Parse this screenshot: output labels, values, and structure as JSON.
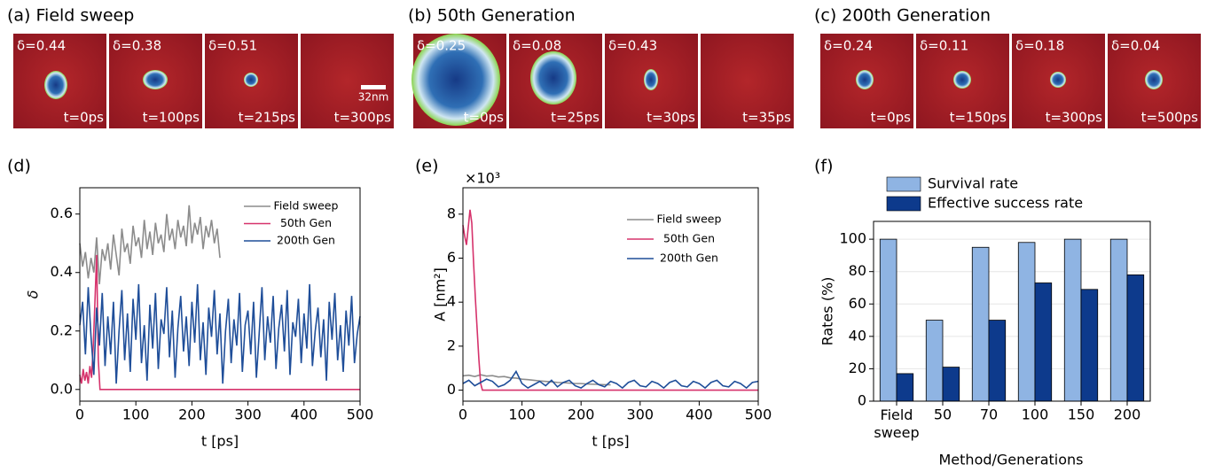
{
  "image_panels": [
    {
      "title": "(a) Field sweep",
      "tiles": [
        {
          "delta": "δ=0.44",
          "time": "t=0ps"
        },
        {
          "delta": "δ=0.38",
          "time": "t=100ps"
        },
        {
          "delta": "δ=0.51",
          "time": "t=215ps"
        },
        {
          "time": "t=300ps",
          "scale_bar": "32nm"
        }
      ]
    },
    {
      "title": "(b) 50th Generation",
      "tiles": [
        {
          "delta": "δ=0.25",
          "time": "t=0ps"
        },
        {
          "delta": "δ=0.08",
          "time": "t=25ps"
        },
        {
          "delta": "δ=0.43",
          "time": "t=30ps"
        },
        {
          "time": "t=35ps"
        }
      ]
    },
    {
      "title": "(c) 200th Generation",
      "tiles": [
        {
          "delta": "δ=0.24",
          "time": "t=0ps"
        },
        {
          "delta": "δ=0.11",
          "time": "t=150ps"
        },
        {
          "delta": "δ=0.18",
          "time": "t=300ps"
        },
        {
          "delta": "δ=0.04",
          "time": "t=500ps"
        }
      ]
    }
  ],
  "chart_data": [
    {
      "type": "line",
      "panel_label": "(d)",
      "xlabel": "t [ps]",
      "ylabel": "δ",
      "xlim": [
        0,
        500
      ],
      "xticks": [
        0,
        100,
        200,
        300,
        400,
        500
      ],
      "ylim": [
        -0.04,
        0.69
      ],
      "yticks": [
        {
          "value": 0,
          "label": "0.0"
        },
        0.2,
        0.4,
        0.6
      ],
      "legend": "upper right",
      "grid": false,
      "series": [
        {
          "name": "Field sweep",
          "color": "#8c8c8c",
          "x": [
            0,
            5,
            10,
            15,
            20,
            25,
            30,
            35,
            40,
            45,
            50,
            55,
            60,
            65,
            70,
            75,
            80,
            85,
            90,
            95,
            100,
            105,
            110,
            115,
            120,
            125,
            130,
            135,
            140,
            145,
            150,
            155,
            160,
            165,
            170,
            175,
            180,
            185,
            190,
            195,
            200,
            205,
            210,
            215,
            220,
            225,
            230,
            235,
            240,
            245,
            250
          ],
          "values": [
            0.5,
            0.42,
            0.47,
            0.38,
            0.45,
            0.4,
            0.52,
            0.36,
            0.48,
            0.44,
            0.5,
            0.41,
            0.53,
            0.46,
            0.39,
            0.55,
            0.47,
            0.5,
            0.43,
            0.56,
            0.49,
            0.52,
            0.45,
            0.58,
            0.48,
            0.54,
            0.46,
            0.57,
            0.5,
            0.53,
            0.47,
            0.6,
            0.51,
            0.55,
            0.48,
            0.58,
            0.52,
            0.56,
            0.49,
            0.63,
            0.5,
            0.57,
            0.53,
            0.59,
            0.48,
            0.56,
            0.52,
            0.58,
            0.5,
            0.55,
            0.45
          ]
        },
        {
          "name": "50th Gen",
          "color": "#d6336c",
          "x": [
            0,
            3,
            6,
            9,
            12,
            15,
            18,
            21,
            24,
            27,
            30,
            33,
            36,
            500
          ],
          "values": [
            0.05,
            0.02,
            0.07,
            0.03,
            0.06,
            0.02,
            0.08,
            0.04,
            0.15,
            0.3,
            0.46,
            0.1,
            0,
            0
          ]
        },
        {
          "name": "200th Gen",
          "color": "#1f4e99",
          "x": [
            0,
            5,
            10,
            15,
            20,
            25,
            30,
            35,
            40,
            45,
            50,
            55,
            60,
            65,
            70,
            75,
            80,
            85,
            90,
            95,
            100,
            105,
            110,
            115,
            120,
            125,
            130,
            135,
            140,
            145,
            150,
            155,
            160,
            165,
            170,
            175,
            180,
            185,
            190,
            195,
            200,
            205,
            210,
            215,
            220,
            225,
            230,
            235,
            240,
            245,
            250,
            255,
            260,
            265,
            270,
            275,
            280,
            285,
            290,
            295,
            300,
            305,
            310,
            315,
            320,
            325,
            330,
            335,
            340,
            345,
            350,
            355,
            360,
            365,
            370,
            375,
            380,
            385,
            390,
            395,
            400,
            405,
            410,
            415,
            420,
            425,
            430,
            435,
            440,
            445,
            450,
            455,
            460,
            465,
            470,
            475,
            480,
            485,
            490,
            495,
            500
          ],
          "values": [
            0.22,
            0.3,
            0.12,
            0.35,
            0.18,
            0.05,
            0.28,
            0.15,
            0.33,
            0.08,
            0.25,
            0.12,
            0.3,
            0.02,
            0.2,
            0.34,
            0.1,
            0.26,
            0.06,
            0.31,
            0.17,
            0.36,
            0.09,
            0.22,
            0.03,
            0.29,
            0.14,
            0.33,
            0.07,
            0.24,
            0.19,
            0.35,
            0.11,
            0.27,
            0.04,
            0.21,
            0.32,
            0.13,
            0.25,
            0.08,
            0.3,
            0.16,
            0.36,
            0.1,
            0.23,
            0.05,
            0.28,
            0.18,
            0.34,
            0.12,
            0.26,
            0.02,
            0.2,
            0.31,
            0.09,
            0.24,
            0.15,
            0.33,
            0.06,
            0.22,
            0.27,
            0.12,
            0.3,
            0.04,
            0.19,
            0.35,
            0.1,
            0.25,
            0.16,
            0.32,
            0.07,
            0.21,
            0.29,
            0.13,
            0.34,
            0.05,
            0.23,
            0.18,
            0.31,
            0.09,
            0.26,
            0.14,
            0.36,
            0.08,
            0.2,
            0.28,
            0.11,
            0.24,
            0.03,
            0.3,
            0.17,
            0.33,
            0.1,
            0.22,
            0.06,
            0.27,
            0.15,
            0.32,
            0.09,
            0.19,
            0.25
          ]
        }
      ]
    },
    {
      "type": "line",
      "panel_label": "(e)",
      "xlabel": "t [ps]",
      "ylabel": "A [nm²]",
      "y_offset_text": "×10³",
      "xlim": [
        0,
        500
      ],
      "xticks": [
        0,
        100,
        200,
        300,
        400,
        500
      ],
      "ylim": [
        -0.5,
        9.2
      ],
      "yticks": [
        0,
        2,
        4,
        6,
        8
      ],
      "legend": "upper right",
      "grid": false,
      "series": [
        {
          "name": "Field sweep",
          "color": "#8c8c8c",
          "x": [
            0,
            10,
            20,
            30,
            40,
            50,
            60,
            70,
            80,
            90,
            100,
            110,
            120,
            130,
            140,
            150,
            160,
            170,
            180,
            190,
            200,
            210,
            220,
            230,
            240,
            250
          ],
          "values": [
            0.65,
            0.68,
            0.62,
            0.7,
            0.64,
            0.66,
            0.6,
            0.62,
            0.56,
            0.55,
            0.5,
            0.48,
            0.45,
            0.42,
            0.4,
            0.38,
            0.35,
            0.34,
            0.32,
            0.3,
            0.3,
            0.28,
            0.27,
            0.26,
            0.25,
            0.24
          ]
        },
        {
          "name": "50th Gen",
          "color": "#d6336c",
          "x": [
            0,
            3,
            6,
            9,
            12,
            15,
            18,
            21,
            24,
            27,
            30,
            33,
            36,
            500
          ],
          "values": [
            7.5,
            7.0,
            6.6,
            7.4,
            8.2,
            7.6,
            5.8,
            4.2,
            2.8,
            1.4,
            0.3,
            0,
            0,
            0
          ]
        },
        {
          "name": "200th Gen",
          "color": "#1f4e99",
          "x": [
            0,
            10,
            20,
            30,
            40,
            50,
            60,
            70,
            80,
            90,
            100,
            110,
            120,
            130,
            140,
            150,
            160,
            170,
            180,
            190,
            200,
            210,
            220,
            230,
            240,
            250,
            260,
            270,
            280,
            290,
            300,
            310,
            320,
            330,
            340,
            350,
            360,
            370,
            380,
            390,
            400,
            410,
            420,
            430,
            440,
            450,
            460,
            470,
            480,
            490,
            500
          ],
          "values": [
            0.3,
            0.45,
            0.2,
            0.35,
            0.5,
            0.4,
            0.15,
            0.25,
            0.45,
            0.85,
            0.3,
            0.1,
            0.25,
            0.4,
            0.2,
            0.45,
            0.15,
            0.35,
            0.45,
            0.2,
            0.1,
            0.3,
            0.45,
            0.25,
            0.15,
            0.4,
            0.3,
            0.1,
            0.35,
            0.45,
            0.2,
            0.15,
            0.4,
            0.3,
            0.1,
            0.35,
            0.45,
            0.2,
            0.15,
            0.4,
            0.3,
            0.1,
            0.35,
            0.45,
            0.2,
            0.15,
            0.4,
            0.3,
            0.1,
            0.35,
            0.4
          ]
        }
      ]
    },
    {
      "type": "bar",
      "panel_label": "(f)",
      "xlabel": "Method/Generations",
      "ylabel": "Rates (%)",
      "categories": [
        "Field sweep",
        "50",
        "70",
        "100",
        "150",
        "200"
      ],
      "ylim": [
        0,
        111
      ],
      "yticks": [
        0,
        20,
        40,
        60,
        80,
        100
      ],
      "legend": "upper left",
      "grid": true,
      "series": [
        {
          "name": "Survival rate",
          "color": "#8fb4e3",
          "values": [
            100,
            50,
            95,
            98,
            100,
            100
          ]
        },
        {
          "name": "Effective success rate",
          "color": "#0d3a8c",
          "values": [
            17,
            21,
            50,
            73,
            69,
            78
          ]
        }
      ]
    }
  ]
}
